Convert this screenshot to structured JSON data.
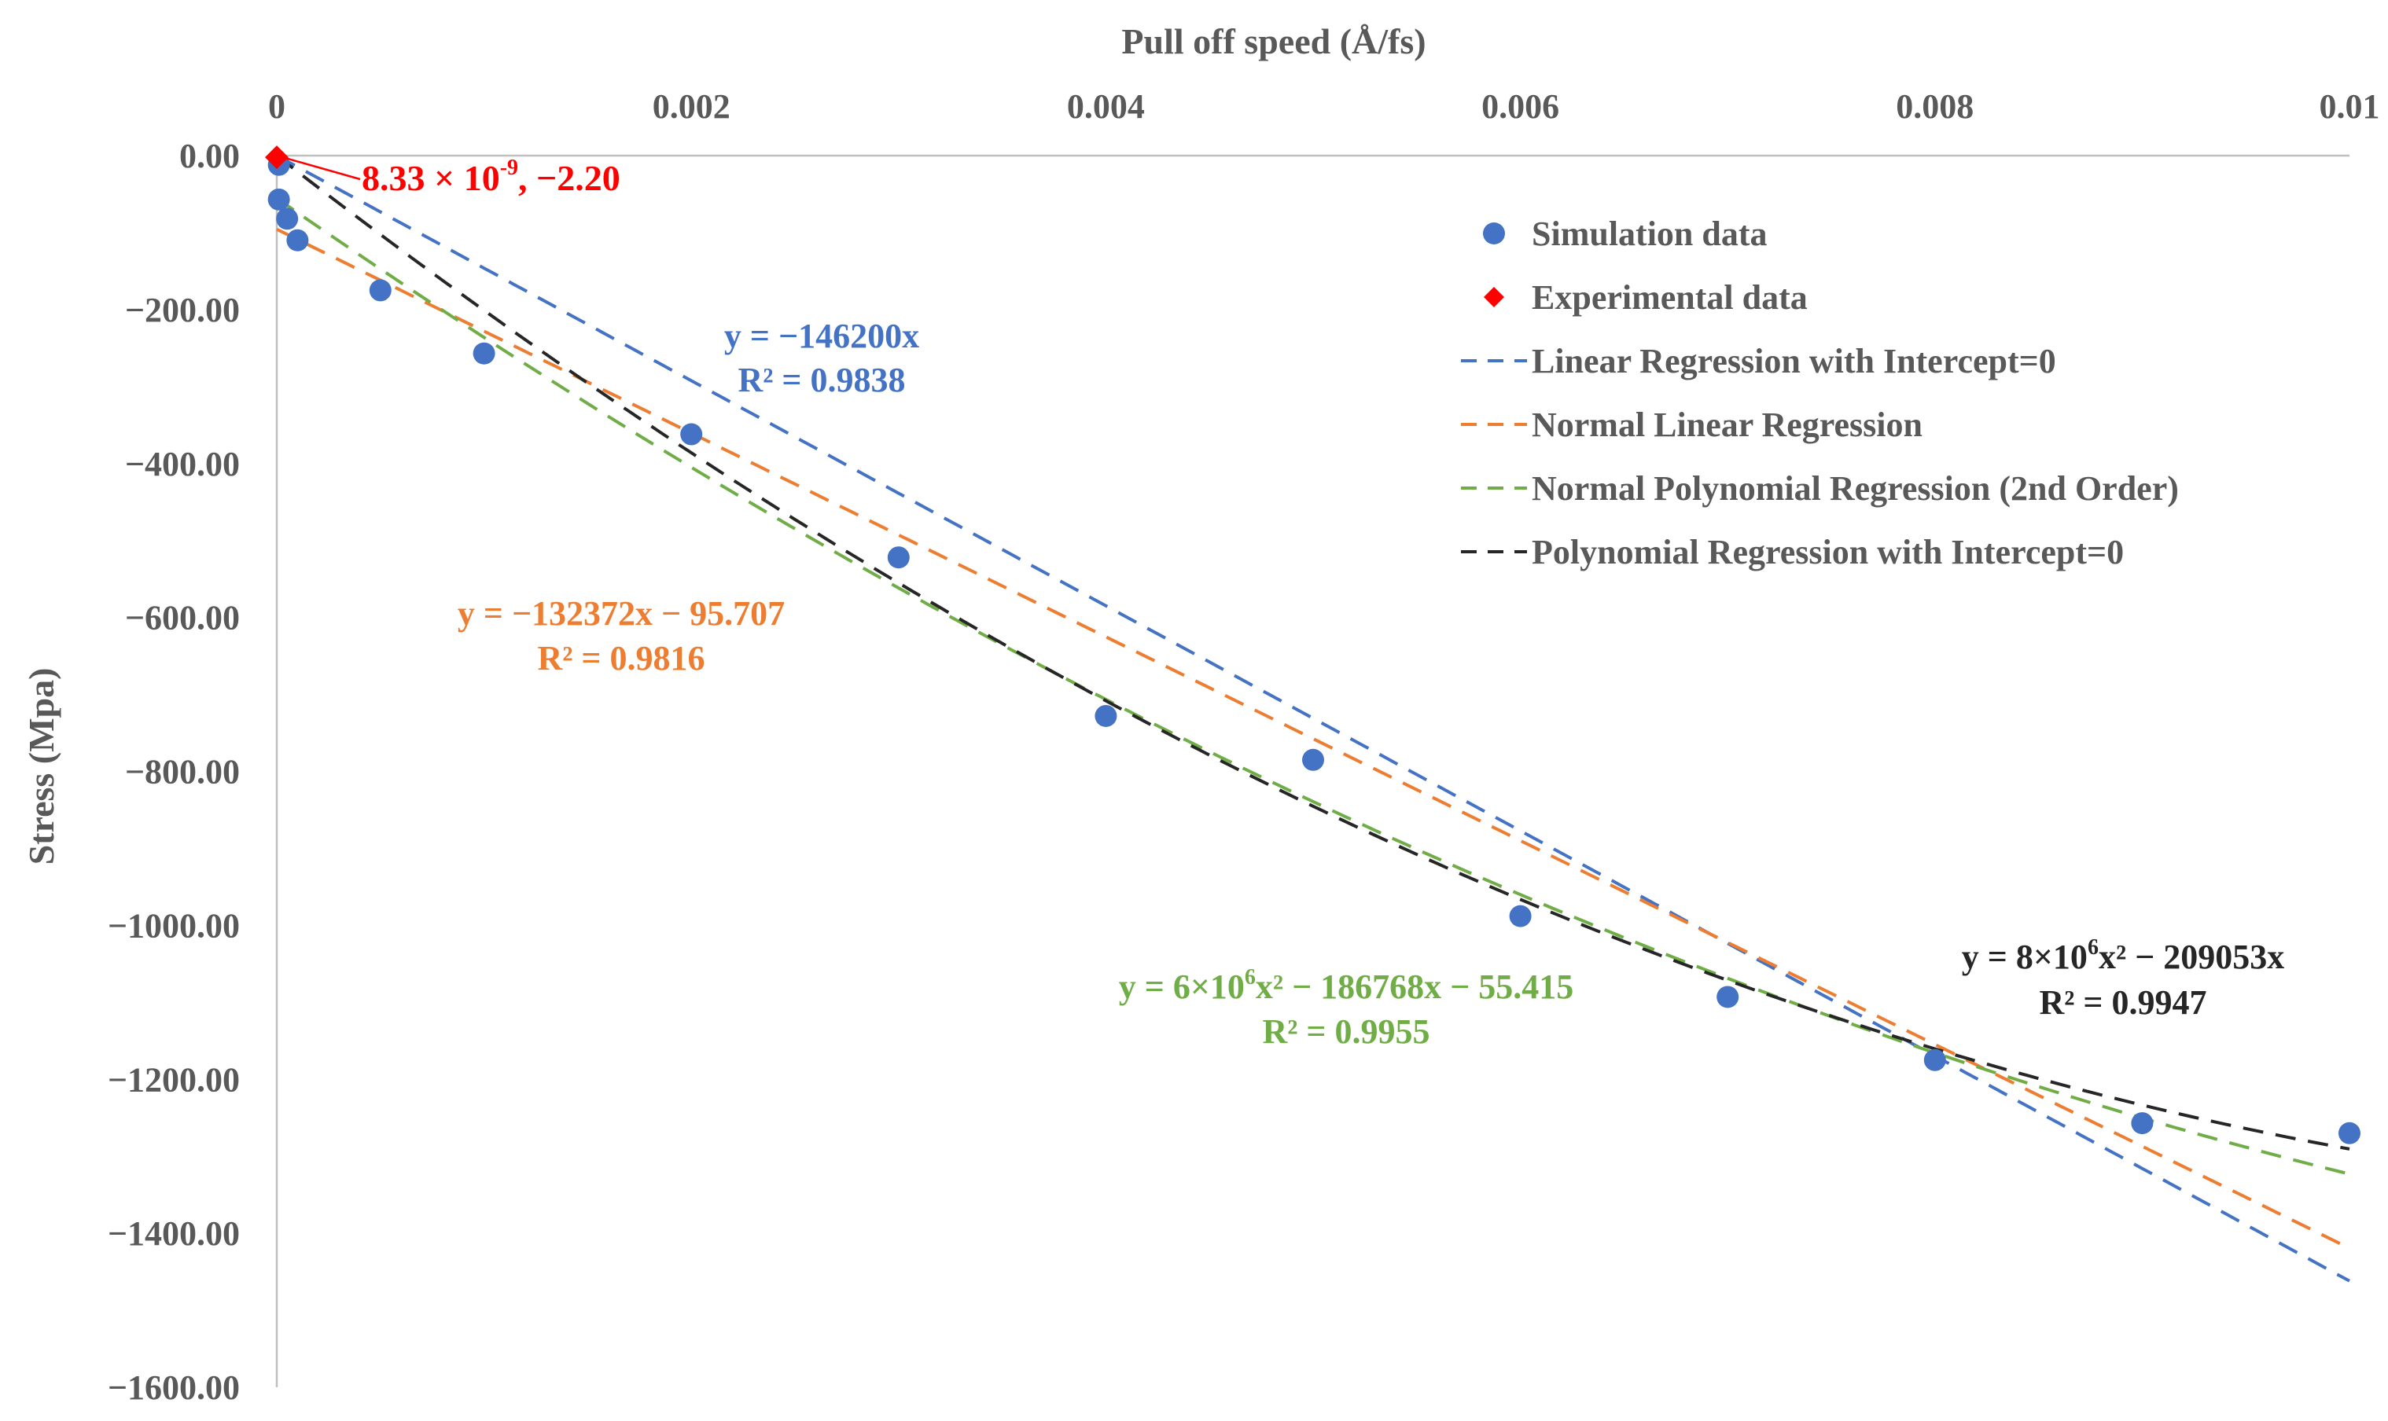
{
  "chart_data": {
    "type": "scatter",
    "title": "",
    "xlabel": "Pull off speed (Å/fs)",
    "ylabel": "Stress (Mpa)",
    "x_axis_position": "top",
    "xlim": [
      0,
      0.01
    ],
    "ylim": [
      -1600,
      0
    ],
    "x_ticks": [
      0,
      0.002,
      0.004,
      0.006,
      0.008,
      0.01
    ],
    "x_tick_labels": [
      "0",
      "0.002",
      "0.004",
      "0.006",
      "0.008",
      "0.01"
    ],
    "y_ticks": [
      0,
      -200,
      -400,
      -600,
      -800,
      -1000,
      -1200,
      -1400,
      -1600
    ],
    "y_tick_labels": [
      "0.00",
      "−200.00",
      "−400.00",
      "−600.00",
      "−800.00",
      "−1000.00",
      "−1200.00",
      "−1400.00",
      "−1600.00"
    ],
    "grid": false,
    "legend_position": "top-right",
    "series": [
      {
        "name": "Simulation data",
        "kind": "markers",
        "marker": "circle",
        "color": "#4472C4",
        "x": [
          1e-05,
          1e-05,
          5e-05,
          0.0001,
          0.0005,
          0.001,
          0.002,
          0.003,
          0.004,
          0.005,
          0.006,
          0.007,
          0.008,
          0.009,
          0.01
        ],
        "y": [
          -12,
          -57,
          -82,
          -110,
          -175,
          -257,
          -362,
          -522,
          -728,
          -785,
          -988,
          -1093,
          -1175,
          -1257,
          -1270
        ]
      },
      {
        "name": "Experimental data",
        "kind": "markers",
        "marker": "diamond",
        "color": "#FF0000",
        "x": [
          8.33e-09
        ],
        "y": [
          -2.2
        ]
      },
      {
        "name": "Linear Regression with Intercept=0",
        "kind": "trendline",
        "model": "linear",
        "coefficients": {
          "a": -146200,
          "b": 0
        },
        "color": "#4472C4",
        "dash": "dashed"
      },
      {
        "name": "Normal Linear Regression",
        "kind": "trendline",
        "model": "linear",
        "coefficients": {
          "a": -132372,
          "b": -95.707
        },
        "color": "#ED7D31",
        "dash": "dashed"
      },
      {
        "name": "Normal Polynomial Regression (2nd Order)",
        "kind": "trendline",
        "model": "quadratic",
        "coefficients": {
          "a2": 6000000,
          "a1": -186768,
          "a0": -55.415
        },
        "color": "#70AD47",
        "dash": "dashed"
      },
      {
        "name": "Polynomial Regression with Intercept=0",
        "kind": "trendline",
        "model": "quadratic",
        "coefficients": {
          "a2": 8000000,
          "a1": -209053,
          "a0": 0
        },
        "color": "#262626",
        "dash": "dashed"
      }
    ],
    "annotations": [
      {
        "id": "exp-point",
        "color": "#FF0000",
        "text": "8.33 × 10",
        "superscript": "-9",
        "suffix": ", −2.20",
        "anchor_x": 0,
        "anchor_y": -2.2
      },
      {
        "id": "eq-linear-zero",
        "color": "#4472C4",
        "line1": "y = −146200x",
        "line2": "R² = 0.9838"
      },
      {
        "id": "eq-linear-normal",
        "color": "#ED7D31",
        "line1": "y = −132372x − 95.707",
        "line2": "R² = 0.9816"
      },
      {
        "id": "eq-poly-normal",
        "color": "#70AD47",
        "line1_pre": "y = 6×10",
        "line1_sup": "6",
        "line1_post": "x² − 186768x − 55.415",
        "line2": "R² = 0.9955"
      },
      {
        "id": "eq-poly-zero",
        "color": "#262626",
        "line1_pre": "y = 8×10",
        "line1_sup": "6",
        "line1_post": "x² − 209053x",
        "line2": "R² = 0.9947"
      }
    ]
  },
  "colors": {
    "axis": "#BFBFBF",
    "label": "#595959"
  }
}
